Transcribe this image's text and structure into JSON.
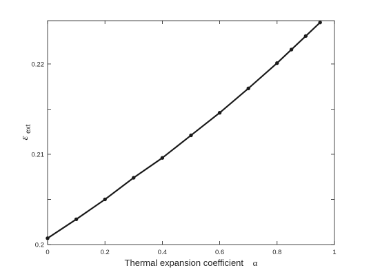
{
  "chart_data": {
    "type": "line",
    "xlabel": "Thermal expansion coefficient",
    "xlabel_symbol": "α",
    "ylabel_base": "ε",
    "ylabel_sub": "ext",
    "xlim": [
      0,
      1
    ],
    "ylim": [
      0.2,
      0.2248
    ],
    "x_ticks": [
      0,
      0.2,
      0.4,
      0.6,
      0.8,
      1
    ],
    "x_tick_labels": [
      "0",
      "0.2",
      "0.4",
      "0.6",
      "0.8",
      "1"
    ],
    "y_ticks": [
      0.2,
      0.21,
      0.22
    ],
    "y_tick_labels": [
      "0.2",
      "0.21",
      "0.22"
    ],
    "grid": false,
    "line_color": "#1a1a1a",
    "series": [
      {
        "x": [
          0,
          0.1,
          0.2,
          0.3,
          0.4,
          0.5,
          0.6,
          0.7,
          0.8,
          0.85,
          0.9,
          0.95
        ],
        "y": [
          0.2007,
          0.2028,
          0.205,
          0.2074,
          0.2096,
          0.2121,
          0.2146,
          0.2173,
          0.2201,
          0.2216,
          0.2231,
          0.2246
        ]
      }
    ]
  }
}
